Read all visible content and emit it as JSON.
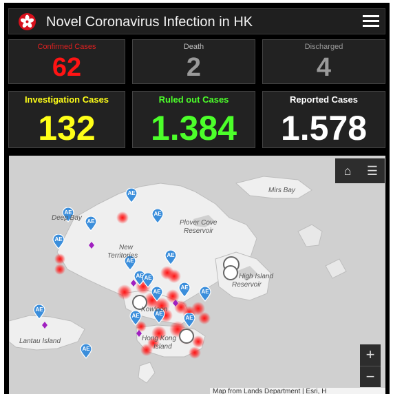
{
  "header": {
    "title": "Novel Coronavirus Infection in HK",
    "logo_icon": "hk-bauhinia-icon",
    "menu_icon": "hamburger-menu-icon"
  },
  "stats_small": [
    {
      "label": "Confirmed Cases",
      "value": "62",
      "color": "#ff1414",
      "label_color": "#e02020"
    },
    {
      "label": "Death",
      "value": "2",
      "color": "#9a9a9a",
      "label_color": "#bdbdbd"
    },
    {
      "label": "Discharged",
      "value": "4",
      "color": "#9a9a9a",
      "label_color": "#9a9a9a"
    }
  ],
  "stats_big": [
    {
      "label": "Investigation Cases",
      "value": "132",
      "color": "#ffff18",
      "label_color": "#ffff18"
    },
    {
      "label": "Ruled out Cases",
      "value": "1.384",
      "color": "#4cff2a",
      "label_color": "#4cff2a"
    },
    {
      "label": "Reported Cases",
      "value": "1.578",
      "color": "#ffffff",
      "label_color": "#ffffff"
    }
  ],
  "map": {
    "place_labels": [
      "Mirs Bay",
      "Deep Bay",
      "Plover Cove",
      "Reservoir",
      "New",
      "Territories",
      "High Island",
      "Reservoir",
      "Lantau Island",
      "Kowloon",
      "Hong Kong",
      "Island"
    ],
    "marker_label": "AE",
    "buttons": {
      "home_icon": "home-icon",
      "list_icon": "list-icon",
      "zoom_in": "+",
      "zoom_out": "−"
    },
    "attribution": "Map from Lands Department | Esri, H",
    "colors": {
      "ae_marker": "#3b8edb",
      "hotspot": "#ff2020",
      "clinic_marker": "#a020c0"
    }
  }
}
